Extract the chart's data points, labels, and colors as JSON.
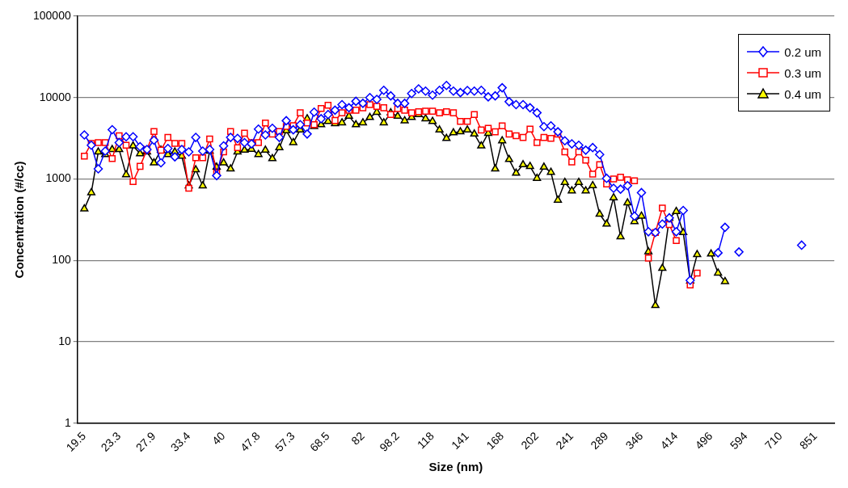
{
  "chart_data": {
    "type": "line",
    "xlabel": "Size (nm)",
    "ylabel": "Concentration (#/cc)",
    "categories": [
      "19.5",
      null,
      null,
      null,
      null,
      "23.3",
      null,
      null,
      null,
      null,
      "27.9",
      null,
      null,
      null,
      null,
      "33.4",
      null,
      null,
      null,
      null,
      "40",
      null,
      null,
      null,
      null,
      "47.8",
      null,
      null,
      null,
      null,
      "57.3",
      null,
      null,
      null,
      null,
      "68.5",
      null,
      null,
      null,
      null,
      "82",
      null,
      null,
      null,
      null,
      "98.2",
      null,
      null,
      null,
      null,
      "118",
      null,
      null,
      null,
      null,
      "141",
      null,
      null,
      null,
      null,
      "168",
      null,
      null,
      null,
      null,
      "202",
      null,
      null,
      null,
      null,
      "241",
      null,
      null,
      null,
      null,
      "289",
      null,
      null,
      null,
      null,
      "346",
      null,
      null,
      null,
      null,
      "414",
      null,
      null,
      null,
      null,
      "496",
      null,
      null,
      null,
      null,
      "594",
      null,
      null,
      null,
      null,
      "710",
      null,
      null,
      null,
      null,
      "851",
      null,
      null
    ],
    "series": [
      {
        "name": "0.2 um",
        "color": "#0000ff",
        "marker": "diamond",
        "values": [
          3480,
          2600,
          1330,
          2200,
          4030,
          2800,
          3300,
          3300,
          2500,
          2300,
          3000,
          1580,
          2370,
          1870,
          2300,
          2150,
          3240,
          2200,
          2300,
          1100,
          2550,
          3240,
          3150,
          2800,
          2700,
          4100,
          3480,
          4200,
          3240,
          5200,
          4020,
          4650,
          3570,
          6640,
          5500,
          6200,
          7000,
          8200,
          7500,
          9000,
          8500,
          10000,
          9500,
          12300,
          10500,
          8500,
          8500,
          11200,
          12800,
          12000,
          10700,
          12300,
          14100,
          12000,
          11500,
          12200,
          12000,
          12300,
          10200,
          10500,
          13200,
          8900,
          8200,
          8200,
          7500,
          6500,
          4400,
          4500,
          3800,
          2950,
          2700,
          2600,
          2260,
          2430,
          2000,
          1020,
          770,
          750,
          830,
          350,
          680,
          225,
          220,
          280,
          333,
          225,
          410,
          57,
          null,
          null,
          null,
          124,
          255,
          null,
          127,
          null,
          null,
          null,
          null,
          null,
          null,
          null,
          null,
          154,
          null,
          null,
          null,
          null
        ]
      },
      {
        "name": "0.3 um",
        "color": "#ff0000",
        "marker": "square",
        "values": [
          1910,
          2740,
          2800,
          2800,
          1780,
          3400,
          2600,
          930,
          1430,
          2300,
          3830,
          2260,
          3240,
          2740,
          2740,
          770,
          1820,
          1820,
          3100,
          1180,
          2150,
          3830,
          2430,
          3650,
          2800,
          2800,
          4870,
          3570,
          3830,
          4420,
          4530,
          6500,
          4870,
          4650,
          7340,
          8060,
          5230,
          6500,
          7000,
          7000,
          7500,
          8200,
          7800,
          7500,
          6200,
          7300,
          7000,
          6500,
          6700,
          6800,
          6800,
          6500,
          6700,
          6500,
          5100,
          5100,
          6200,
          4000,
          4200,
          3800,
          4500,
          3570,
          3400,
          3240,
          4100,
          2800,
          3240,
          3150,
          3570,
          2150,
          1620,
          2150,
          1700,
          1150,
          1500,
          870,
          1000,
          1050,
          980,
          950,
          null,
          107,
          220,
          440,
          275,
          175,
          null,
          50,
          70,
          null,
          null,
          null,
          null,
          null,
          null,
          null,
          null,
          null,
          null,
          null,
          null,
          null,
          null,
          null,
          null,
          null,
          null,
          null
        ]
      },
      {
        "name": "0.4 um",
        "color": "#000000",
        "marker": "triangle",
        "values": [
          430,
          680,
          2150,
          2000,
          2300,
          2300,
          1130,
          2550,
          2050,
          2150,
          1580,
          2260,
          2000,
          2150,
          1910,
          825,
          1300,
          825,
          2200,
          1400,
          1580,
          1330,
          2150,
          2260,
          2320,
          2000,
          2260,
          1780,
          2430,
          3920,
          2800,
          4020,
          5500,
          4420,
          4650,
          5110,
          4800,
          4900,
          5900,
          4650,
          4900,
          5700,
          6600,
          4900,
          6500,
          5900,
          5200,
          5700,
          6200,
          5500,
          5100,
          4000,
          3150,
          3700,
          3800,
          4000,
          3570,
          2550,
          3650,
          1330,
          2950,
          1740,
          1180,
          1500,
          1430,
          1020,
          1400,
          1210,
          550,
          910,
          715,
          910,
          715,
          830,
          370,
          280,
          590,
          195,
          510,
          300,
          350,
          128,
          28,
          80,
          330,
          400,
          220,
          56,
          118,
          null,
          120,
          70,
          55,
          null,
          null,
          null,
          null,
          null,
          null,
          null,
          null,
          null,
          null,
          null,
          null,
          null,
          null,
          null
        ]
      }
    ],
    "log": "y",
    "ylim": [
      1,
      100000
    ],
    "yticks": [
      1,
      10,
      100,
      1000,
      10000,
      100000
    ],
    "grid": "y",
    "legend": "top right",
    "line_style": "solid"
  }
}
